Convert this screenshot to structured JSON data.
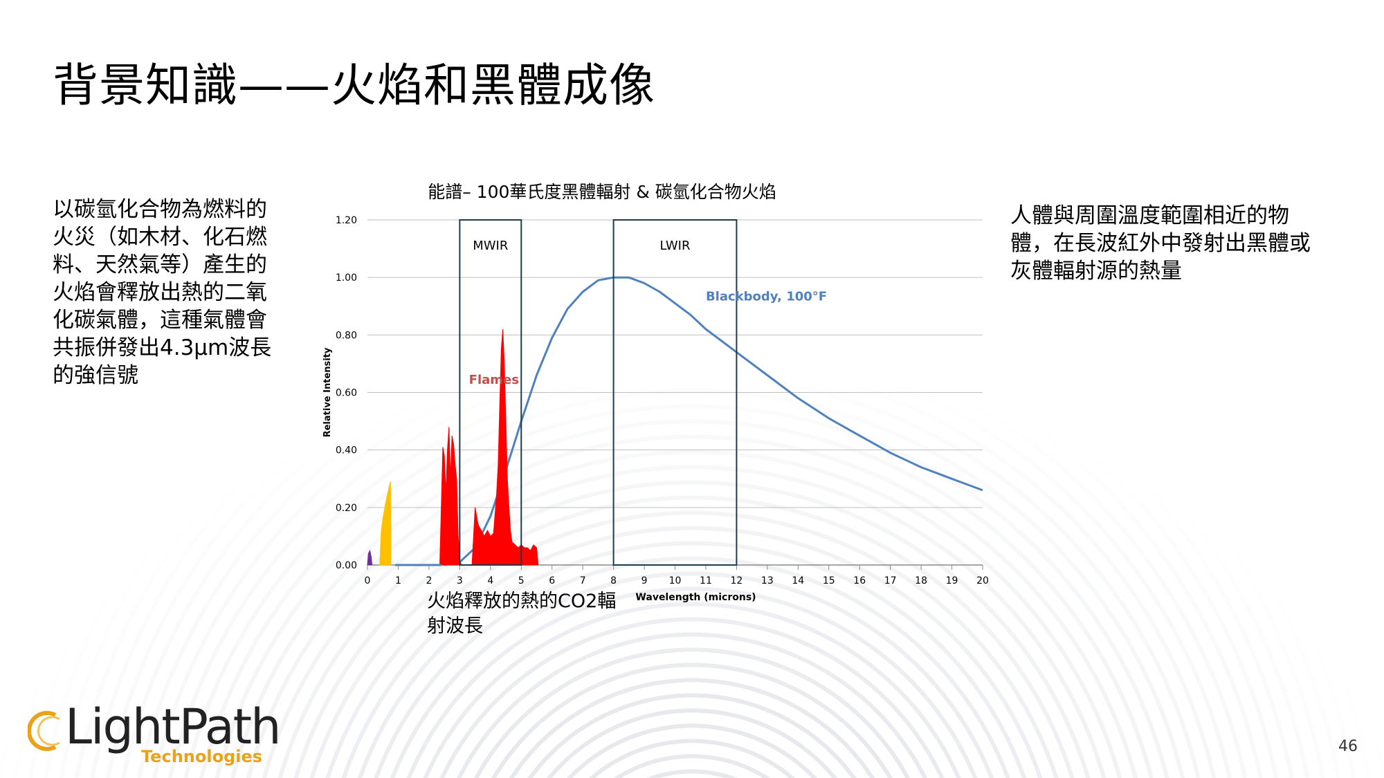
{
  "slide": {
    "title": "背景知識——火焰和黑體成像",
    "left_text": "以碳氫化合物為燃料的火災（如木材、化石燃料、天然氣等）產生的火焰會釋放出熱的二氧化碳氣體，這種氣體會共振併發出4.3µm波長的強信號",
    "right_text": "人體與周圍溫度範圍相近的物體，在長波紅外中發射出黑體或灰體輻射源的熱量",
    "caption": "火焰釋放的熱的CO2輻射波長",
    "page_number": "46"
  },
  "logo": {
    "name": "LightPath",
    "sub": "Technologies"
  },
  "chart_data": {
    "type": "area",
    "title": "能譜– 100華氏度黑體輻射 & 碳氫化合物火焰",
    "xlabel": "Wavelength (microns)",
    "ylabel": "Relative Intensity",
    "xlim": [
      0,
      20
    ],
    "ylim": [
      0,
      1.2
    ],
    "x_ticks": [
      "0",
      "1",
      "2",
      "3",
      "4",
      "5",
      "6",
      "7",
      "8",
      "9",
      "10",
      "11",
      "12",
      "13",
      "14",
      "15",
      "16",
      "17",
      "18",
      "19",
      "20"
    ],
    "y_ticks": [
      "0.00",
      "0.20",
      "0.40",
      "0.60",
      "0.80",
      "1.00",
      "1.20"
    ],
    "grid": true,
    "bands": [
      {
        "label": "MWIR",
        "x_start": 3,
        "x_end": 5
      },
      {
        "label": "LWIR",
        "x_start": 8,
        "x_end": 12
      }
    ],
    "series": [
      {
        "name": "Blackbody, 100°F",
        "kind": "line",
        "color": "#4f81bd",
        "x": [
          2.5,
          3,
          3.5,
          4,
          4.5,
          5,
          5.5,
          6,
          6.5,
          7,
          7.5,
          8,
          8.5,
          9,
          9.5,
          10,
          10.5,
          11,
          11.5,
          12,
          13,
          14,
          15,
          16,
          17,
          18,
          19,
          20
        ],
        "y": [
          0.0,
          0.01,
          0.06,
          0.17,
          0.33,
          0.5,
          0.66,
          0.79,
          0.89,
          0.95,
          0.99,
          1.0,
          1.0,
          0.98,
          0.95,
          0.91,
          0.87,
          0.82,
          0.78,
          0.74,
          0.66,
          0.58,
          0.51,
          0.45,
          0.39,
          0.34,
          0.3,
          0.26
        ]
      },
      {
        "name": "Flames",
        "kind": "area",
        "color": "#ff0000",
        "x": [
          2.35,
          2.4,
          2.45,
          2.5,
          2.55,
          2.6,
          2.65,
          2.7,
          2.75,
          2.8,
          2.85,
          2.9,
          2.95,
          3.0,
          3.05,
          3.1,
          3.15,
          3.2,
          3.3,
          3.4,
          3.5,
          3.6,
          3.7,
          3.8,
          3.9,
          4.0,
          4.1,
          4.15,
          4.2,
          4.25,
          4.3,
          4.35,
          4.4,
          4.45,
          4.5,
          4.55,
          4.6,
          4.65,
          4.7,
          4.8,
          4.9,
          5.0,
          5.1,
          5.2,
          5.3,
          5.4,
          5.5,
          5.55
        ],
        "y": [
          0.0,
          0.2,
          0.41,
          0.38,
          0.25,
          0.4,
          0.48,
          0.3,
          0.45,
          0.42,
          0.35,
          0.3,
          0.1,
          0.02,
          0.0,
          0.0,
          0.0,
          0.0,
          0.0,
          0.0,
          0.2,
          0.14,
          0.12,
          0.1,
          0.12,
          0.1,
          0.11,
          0.18,
          0.25,
          0.35,
          0.55,
          0.75,
          0.82,
          0.7,
          0.5,
          0.3,
          0.2,
          0.12,
          0.08,
          0.07,
          0.06,
          0.07,
          0.06,
          0.06,
          0.05,
          0.07,
          0.06,
          0.0
        ]
      },
      {
        "name": "visible",
        "kind": "area",
        "color": "#ffc000",
        "x": [
          0.4,
          0.45,
          0.5,
          0.6,
          0.7,
          0.75,
          0.76
        ],
        "y": [
          0.0,
          0.12,
          0.16,
          0.22,
          0.27,
          0.29,
          0.0
        ]
      },
      {
        "name": "uv",
        "kind": "area",
        "color": "#7030a0",
        "x": [
          0.0,
          0.03,
          0.08,
          0.12,
          0.15
        ],
        "y": [
          0.0,
          0.04,
          0.05,
          0.03,
          0.0
        ]
      },
      {
        "name": "baseline",
        "kind": "line",
        "color": "#4f81bd",
        "x": [
          0.9,
          2.4
        ],
        "y": [
          0.0,
          0.0
        ]
      }
    ],
    "annotations": [
      {
        "text": "Flames",
        "x": 3.3,
        "y": 0.63,
        "color": "#c0504d"
      },
      {
        "text": "Blackbody, 100°F",
        "x": 11.0,
        "y": 0.92,
        "color": "#4f81bd"
      }
    ]
  }
}
